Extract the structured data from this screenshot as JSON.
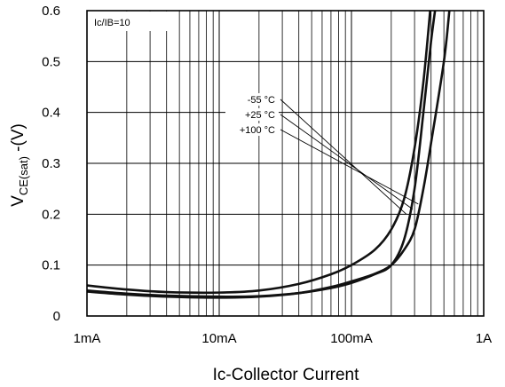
{
  "chart_data": {
    "type": "line",
    "xlabel_prefix": "Ic",
    "xlabel_rest": "-Collector Current",
    "ylabel": {
      "main": "V",
      "sub": "CE(sat)",
      "rest": " -(V)"
    },
    "x_scale": "log",
    "xlim": [
      0.001,
      1
    ],
    "ylim": [
      0,
      0.6
    ],
    "x_ticks": [
      {
        "value": 0.001,
        "label": "1mA"
      },
      {
        "value": 0.01,
        "label": "10mA"
      },
      {
        "value": 0.1,
        "label": "100mA"
      },
      {
        "value": 1,
        "label": "1A"
      }
    ],
    "y_ticks": [
      {
        "value": 0,
        "label": "0"
      },
      {
        "value": 0.1,
        "label": "0.1"
      },
      {
        "value": 0.2,
        "label": "0.2"
      },
      {
        "value": 0.3,
        "label": "0.3"
      },
      {
        "value": 0.4,
        "label": "0.4"
      },
      {
        "value": 0.5,
        "label": "0.5"
      },
      {
        "value": 0.6,
        "label": "0.6"
      }
    ],
    "grid": true,
    "condition_label": "Ic/IB=10",
    "series": [
      {
        "name": "-55 °C",
        "x": [
          0.001,
          0.002,
          0.004,
          0.01,
          0.02,
          0.04,
          0.07,
          0.1,
          0.15,
          0.2,
          0.25,
          0.3,
          0.35,
          0.4,
          0.45
        ],
        "y": [
          0.05,
          0.044,
          0.04,
          0.038,
          0.039,
          0.045,
          0.055,
          0.065,
          0.082,
          0.1,
          0.15,
          0.25,
          0.4,
          0.54,
          0.64
        ]
      },
      {
        "name": "+25 °C",
        "x": [
          0.001,
          0.002,
          0.004,
          0.01,
          0.02,
          0.04,
          0.07,
          0.1,
          0.15,
          0.2,
          0.25,
          0.3,
          0.35,
          0.4,
          0.5,
          0.55
        ],
        "y": [
          0.048,
          0.042,
          0.038,
          0.036,
          0.038,
          0.045,
          0.057,
          0.068,
          0.083,
          0.1,
          0.13,
          0.17,
          0.25,
          0.34,
          0.5,
          0.6
        ]
      },
      {
        "name": "+100 °C",
        "x": [
          0.001,
          0.002,
          0.004,
          0.01,
          0.02,
          0.04,
          0.07,
          0.1,
          0.15,
          0.2,
          0.25,
          0.3,
          0.35,
          0.4
        ],
        "y": [
          0.06,
          0.052,
          0.047,
          0.046,
          0.05,
          0.063,
          0.082,
          0.1,
          0.13,
          0.17,
          0.23,
          0.33,
          0.46,
          0.62
        ]
      }
    ],
    "annotation_leader_targets": [
      {
        "label": "-55 °C",
        "x": 0.26,
        "y": 0.2
      },
      {
        "label": "+25 °C",
        "x": 0.29,
        "y": 0.21
      },
      {
        "label": "+100 °C",
        "x": 0.32,
        "y": 0.22
      }
    ]
  }
}
